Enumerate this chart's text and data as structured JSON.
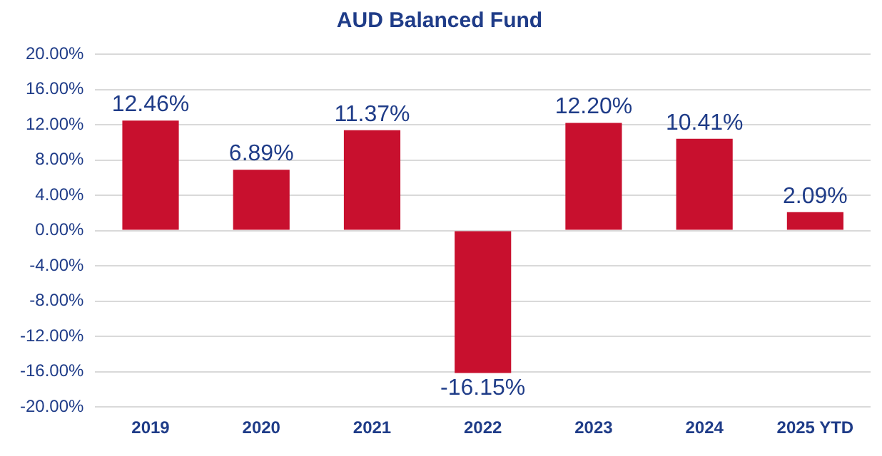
{
  "chart_data": {
    "type": "bar",
    "title": "AUD Balanced Fund",
    "categories": [
      "2019",
      "2020",
      "2021",
      "2022",
      "2023",
      "2024",
      "2025 YTD"
    ],
    "values": [
      12.46,
      6.89,
      11.37,
      -16.15,
      12.2,
      10.41,
      2.09
    ],
    "value_labels": [
      "12.46%",
      "6.89%",
      "11.37%",
      "-16.15%",
      "12.20%",
      "10.41%",
      "2.09%"
    ],
    "color": "#c8102e",
    "ylim": [
      -20,
      20
    ],
    "yticks": [
      {
        "value": -20,
        "label": "-20.00%"
      },
      {
        "value": -16,
        "label": "-16.00%"
      },
      {
        "value": -12,
        "label": "-12.00%"
      },
      {
        "value": -8,
        "label": "-8.00%"
      },
      {
        "value": -4,
        "label": "-4.00%"
      },
      {
        "value": 0,
        "label": "0.00%"
      },
      {
        "value": 4,
        "label": "4.00%"
      },
      {
        "value": 8,
        "label": "8.00%"
      },
      {
        "value": 12,
        "label": "12.00%"
      },
      {
        "value": 16,
        "label": "16.00%"
      },
      {
        "value": 20,
        "label": "20.00%"
      }
    ],
    "grid": "y"
  }
}
